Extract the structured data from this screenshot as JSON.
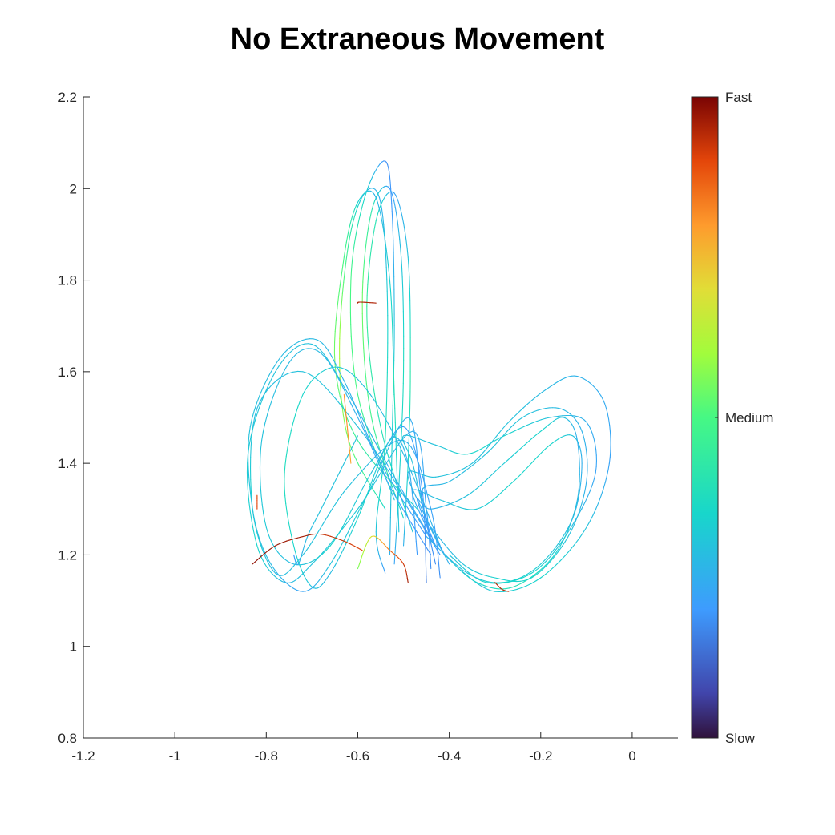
{
  "chart_data": {
    "type": "line",
    "title": "No Extraneous Movement",
    "xlabel": "",
    "ylabel": "",
    "xlim": [
      -1.2,
      0.1
    ],
    "ylim": [
      0.8,
      2.2
    ],
    "xticks": [
      -1.2,
      -1,
      -0.8,
      -0.6,
      -0.4,
      -0.2,
      0
    ],
    "xtick_labels": [
      "-1.2",
      "-1",
      "-0.8",
      "-0.6",
      "-0.4",
      "-0.2",
      "0"
    ],
    "yticks": [
      0.8,
      1,
      1.2,
      1.4,
      1.6,
      1.8,
      2,
      2.2
    ],
    "ytick_labels": [
      "0.8",
      "1",
      "1.2",
      "1.4",
      "1.6",
      "1.8",
      "2",
      "2.2"
    ],
    "grid": false,
    "colormap": "jet",
    "colorbar": {
      "range": [
        0,
        1
      ],
      "ticks": [
        {
          "value": 1.0,
          "label": "Fast"
        },
        {
          "value": 0.5,
          "label": "Medium"
        },
        {
          "value": 0.0,
          "label": "Slow"
        }
      ]
    },
    "series": [
      {
        "points": [
          [
            -0.54,
            1.3
          ],
          [
            -0.62,
            1.45
          ],
          [
            -0.64,
            1.65
          ],
          [
            -0.62,
            1.88
          ],
          [
            -0.585,
            1.99
          ],
          [
            -0.55,
            1.97
          ],
          [
            -0.535,
            1.75
          ],
          [
            -0.54,
            1.45
          ],
          [
            -0.56,
            1.25
          ],
          [
            -0.54,
            1.16
          ]
        ],
        "speed": [
          0.35,
          0.55,
          0.62,
          0.45,
          0.28,
          0.25,
          0.33,
          0.4,
          0.3,
          0.2
        ]
      },
      {
        "points": [
          [
            -0.52,
            1.32
          ],
          [
            -0.6,
            1.55
          ],
          [
            -0.615,
            1.8
          ],
          [
            -0.585,
            1.98
          ],
          [
            -0.54,
            2.06
          ],
          [
            -0.525,
            1.95
          ],
          [
            -0.52,
            1.7
          ],
          [
            -0.525,
            1.45
          ],
          [
            -0.53,
            1.2
          ]
        ],
        "speed": [
          0.3,
          0.5,
          0.5,
          0.35,
          0.18,
          0.2,
          0.3,
          0.35,
          0.25
        ]
      },
      {
        "points": [
          [
            -0.5,
            1.28
          ],
          [
            -0.57,
            1.5
          ],
          [
            -0.59,
            1.75
          ],
          [
            -0.57,
            1.95
          ],
          [
            -0.53,
            2.0
          ],
          [
            -0.505,
            1.85
          ],
          [
            -0.5,
            1.6
          ],
          [
            -0.51,
            1.35
          ],
          [
            -0.52,
            1.18
          ]
        ],
        "speed": [
          0.35,
          0.48,
          0.55,
          0.42,
          0.2,
          0.3,
          0.38,
          0.33,
          0.22
        ]
      },
      {
        "points": [
          [
            -0.48,
            1.25
          ],
          [
            -0.55,
            1.48
          ],
          [
            -0.58,
            1.72
          ],
          [
            -0.56,
            1.93
          ],
          [
            -0.52,
            1.99
          ],
          [
            -0.49,
            1.85
          ],
          [
            -0.485,
            1.6
          ],
          [
            -0.49,
            1.4
          ],
          [
            -0.5,
            1.22
          ]
        ],
        "speed": [
          0.3,
          0.4,
          0.45,
          0.4,
          0.22,
          0.3,
          0.42,
          0.36,
          0.25
        ]
      },
      {
        "points": [
          [
            -0.47,
            1.3
          ],
          [
            -0.6,
            1.45
          ],
          [
            -0.65,
            1.62
          ],
          [
            -0.63,
            1.85
          ],
          [
            -0.6,
            1.97
          ],
          [
            -0.56,
            1.98
          ],
          [
            -0.53,
            1.8
          ],
          [
            -0.52,
            1.55
          ],
          [
            -0.51,
            1.25
          ]
        ],
        "speed": [
          0.32,
          0.45,
          0.55,
          0.5,
          0.35,
          0.26,
          0.34,
          0.4,
          0.3
        ]
      },
      {
        "points": [
          [
            -0.56,
            1.75
          ],
          [
            -0.595,
            1.752
          ],
          [
            -0.6,
            1.75
          ]
        ],
        "speed": [
          0.95,
          0.95,
          0.95
        ]
      },
      {
        "points": [
          [
            -0.42,
            1.2
          ],
          [
            -0.5,
            1.33
          ],
          [
            -0.6,
            1.48
          ],
          [
            -0.72,
            1.6
          ],
          [
            -0.82,
            1.52
          ],
          [
            -0.83,
            1.3
          ],
          [
            -0.78,
            1.16
          ],
          [
            -0.72,
            1.2
          ],
          [
            -0.62,
            1.35
          ],
          [
            -0.5,
            1.45
          ],
          [
            -0.44,
            1.3
          ],
          [
            -0.42,
            1.15
          ]
        ],
        "speed": [
          0.2,
          0.25,
          0.3,
          0.3,
          0.28,
          0.35,
          0.28,
          0.3,
          0.3,
          0.25,
          0.22,
          0.18
        ]
      },
      {
        "points": [
          [
            -0.43,
            1.22
          ],
          [
            -0.52,
            1.37
          ],
          [
            -0.62,
            1.55
          ],
          [
            -0.7,
            1.66
          ],
          [
            -0.78,
            1.6
          ],
          [
            -0.84,
            1.42
          ],
          [
            -0.82,
            1.22
          ],
          [
            -0.76,
            1.14
          ],
          [
            -0.7,
            1.18
          ],
          [
            -0.6,
            1.3
          ],
          [
            -0.48,
            1.47
          ],
          [
            -0.45,
            1.3
          ],
          [
            -0.44,
            1.17
          ]
        ],
        "speed": [
          0.22,
          0.25,
          0.28,
          0.3,
          0.3,
          0.32,
          0.35,
          0.28,
          0.3,
          0.32,
          0.25,
          0.22,
          0.18
        ]
      },
      {
        "points": [
          [
            -0.44,
            1.2
          ],
          [
            -0.53,
            1.35
          ],
          [
            -0.6,
            1.5
          ],
          [
            -0.68,
            1.64
          ],
          [
            -0.75,
            1.62
          ],
          [
            -0.81,
            1.45
          ],
          [
            -0.8,
            1.26
          ],
          [
            -0.74,
            1.18
          ],
          [
            -0.66,
            1.22
          ],
          [
            -0.57,
            1.38
          ],
          [
            -0.5,
            1.48
          ],
          [
            -0.46,
            1.35
          ],
          [
            -0.45,
            1.14
          ]
        ],
        "speed": [
          0.18,
          0.22,
          0.25,
          0.28,
          0.28,
          0.3,
          0.32,
          0.28,
          0.35,
          0.3,
          0.22,
          0.2,
          0.15
        ]
      },
      {
        "points": [
          [
            -0.45,
            1.24
          ],
          [
            -0.55,
            1.4
          ],
          [
            -0.63,
            1.58
          ],
          [
            -0.69,
            1.67
          ],
          [
            -0.77,
            1.63
          ],
          [
            -0.835,
            1.48
          ],
          [
            -0.83,
            1.3
          ],
          [
            -0.79,
            1.18
          ],
          [
            -0.72,
            1.12
          ],
          [
            -0.66,
            1.18
          ],
          [
            -0.58,
            1.33
          ],
          [
            -0.49,
            1.5
          ],
          [
            -0.46,
            1.32
          ],
          [
            -0.43,
            1.18
          ]
        ],
        "speed": [
          0.2,
          0.24,
          0.26,
          0.28,
          0.28,
          0.3,
          0.3,
          0.28,
          0.22,
          0.3,
          0.32,
          0.25,
          0.2,
          0.18
        ]
      },
      {
        "points": [
          [
            -0.42,
            1.22
          ],
          [
            -0.5,
            1.42
          ],
          [
            -0.58,
            1.56
          ],
          [
            -0.65,
            1.61
          ],
          [
            -0.72,
            1.55
          ],
          [
            -0.76,
            1.38
          ],
          [
            -0.74,
            1.22
          ],
          [
            -0.7,
            1.13
          ],
          [
            -0.66,
            1.16
          ],
          [
            -0.6,
            1.28
          ],
          [
            -0.53,
            1.45
          ],
          [
            -0.49,
            1.4
          ],
          [
            -0.47,
            1.2
          ]
        ],
        "speed": [
          0.25,
          0.28,
          0.3,
          0.32,
          0.35,
          0.38,
          0.35,
          0.3,
          0.28,
          0.35,
          0.3,
          0.25,
          0.2
        ]
      },
      {
        "points": [
          [
            -0.74,
            1.2
          ],
          [
            -0.73,
            1.18
          ],
          [
            -0.71,
            1.24
          ],
          [
            -0.68,
            1.3
          ],
          [
            -0.64,
            1.38
          ],
          [
            -0.6,
            1.46
          ]
        ],
        "speed": [
          0.2,
          0.25,
          0.28,
          0.3,
          0.3,
          0.3
        ]
      },
      {
        "points": [
          [
            -0.83,
            1.18
          ],
          [
            -0.78,
            1.22
          ],
          [
            -0.72,
            1.24
          ],
          [
            -0.68,
            1.245
          ],
          [
            -0.63,
            1.23
          ],
          [
            -0.59,
            1.21
          ]
        ],
        "speed": [
          0.98,
          0.97,
          0.96,
          0.93,
          0.92,
          0.9
        ]
      },
      {
        "points": [
          [
            -0.6,
            1.17
          ],
          [
            -0.57,
            1.24
          ],
          [
            -0.53,
            1.21
          ],
          [
            -0.5,
            1.18
          ],
          [
            -0.49,
            1.14
          ]
        ],
        "speed": [
          0.55,
          0.68,
          0.85,
          0.92,
          0.96
        ]
      },
      {
        "points": [
          [
            -0.4,
            1.18
          ],
          [
            -0.45,
            1.28
          ],
          [
            -0.48,
            1.4
          ],
          [
            -0.5,
            1.46
          ],
          [
            -0.43,
            1.44
          ],
          [
            -0.36,
            1.42
          ],
          [
            -0.28,
            1.46
          ],
          [
            -0.18,
            1.5
          ],
          [
            -0.1,
            1.49
          ],
          [
            -0.08,
            1.38
          ],
          [
            -0.14,
            1.25
          ],
          [
            -0.22,
            1.16
          ],
          [
            -0.32,
            1.14
          ],
          [
            -0.4,
            1.2
          ]
        ],
        "speed": [
          0.25,
          0.28,
          0.3,
          0.3,
          0.3,
          0.35,
          0.35,
          0.3,
          0.25,
          0.22,
          0.3,
          0.35,
          0.35,
          0.3
        ]
      },
      {
        "points": [
          [
            -0.41,
            1.2
          ],
          [
            -0.46,
            1.3
          ],
          [
            -0.49,
            1.38
          ],
          [
            -0.43,
            1.37
          ],
          [
            -0.35,
            1.4
          ],
          [
            -0.27,
            1.49
          ],
          [
            -0.19,
            1.56
          ],
          [
            -0.12,
            1.59
          ],
          [
            -0.06,
            1.53
          ],
          [
            -0.05,
            1.4
          ],
          [
            -0.1,
            1.26
          ],
          [
            -0.2,
            1.15
          ],
          [
            -0.3,
            1.12
          ],
          [
            -0.38,
            1.17
          ]
        ],
        "speed": [
          0.22,
          0.25,
          0.28,
          0.3,
          0.3,
          0.3,
          0.28,
          0.26,
          0.24,
          0.22,
          0.3,
          0.35,
          0.32,
          0.28
        ]
      },
      {
        "points": [
          [
            -0.43,
            1.22
          ],
          [
            -0.47,
            1.32
          ],
          [
            -0.44,
            1.3
          ],
          [
            -0.36,
            1.33
          ],
          [
            -0.28,
            1.4
          ],
          [
            -0.2,
            1.47
          ],
          [
            -0.15,
            1.5
          ],
          [
            -0.12,
            1.45
          ],
          [
            -0.12,
            1.32
          ],
          [
            -0.17,
            1.2
          ],
          [
            -0.26,
            1.13
          ],
          [
            -0.34,
            1.14
          ],
          [
            -0.41,
            1.2
          ]
        ],
        "speed": [
          0.2,
          0.22,
          0.25,
          0.3,
          0.32,
          0.35,
          0.3,
          0.25,
          0.28,
          0.35,
          0.4,
          0.35,
          0.3
        ]
      },
      {
        "points": [
          [
            -0.44,
            1.24
          ],
          [
            -0.46,
            1.34
          ],
          [
            -0.4,
            1.36
          ],
          [
            -0.32,
            1.42
          ],
          [
            -0.24,
            1.5
          ],
          [
            -0.16,
            1.52
          ],
          [
            -0.11,
            1.47
          ],
          [
            -0.1,
            1.36
          ],
          [
            -0.14,
            1.24
          ],
          [
            -0.22,
            1.15
          ],
          [
            -0.3,
            1.15
          ],
          [
            -0.37,
            1.18
          ],
          [
            -0.44,
            1.26
          ]
        ],
        "speed": [
          0.2,
          0.25,
          0.28,
          0.3,
          0.3,
          0.28,
          0.26,
          0.25,
          0.3,
          0.35,
          0.34,
          0.3,
          0.25
        ]
      },
      {
        "points": [
          [
            -0.45,
            1.26
          ],
          [
            -0.48,
            1.34
          ],
          [
            -0.42,
            1.32
          ],
          [
            -0.34,
            1.3
          ],
          [
            -0.26,
            1.36
          ],
          [
            -0.18,
            1.44
          ],
          [
            -0.13,
            1.46
          ],
          [
            -0.11,
            1.4
          ],
          [
            -0.13,
            1.28
          ],
          [
            -0.2,
            1.18
          ],
          [
            -0.28,
            1.14
          ],
          [
            -0.36,
            1.16
          ],
          [
            -0.45,
            1.24
          ]
        ],
        "speed": [
          0.22,
          0.25,
          0.3,
          0.32,
          0.35,
          0.35,
          0.3,
          0.25,
          0.28,
          0.32,
          0.35,
          0.3,
          0.25
        ]
      },
      {
        "points": [
          [
            -0.3,
            1.14
          ],
          [
            -0.285,
            1.125
          ],
          [
            -0.27,
            1.12
          ]
        ],
        "speed": [
          0.94,
          0.94,
          0.94
        ]
      },
      {
        "points": [
          [
            -0.63,
            1.55
          ],
          [
            -0.625,
            1.5
          ],
          [
            -0.62,
            1.45
          ],
          [
            -0.615,
            1.4
          ]
        ],
        "speed": [
          0.8,
          0.82,
          0.8,
          0.78
        ]
      },
      {
        "points": [
          [
            -0.82,
            1.3
          ],
          [
            -0.82,
            1.33
          ]
        ],
        "speed": [
          0.9,
          0.9
        ]
      }
    ]
  }
}
